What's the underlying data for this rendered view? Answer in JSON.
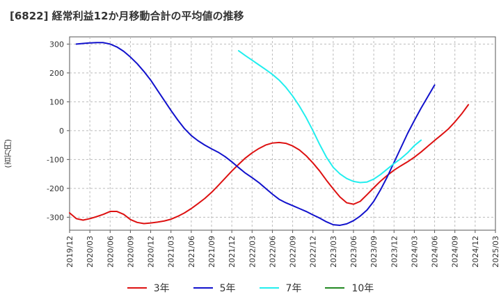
{
  "title": "[6822]  経常利益12か月移動合計の平均値の推移",
  "colors": {
    "grid": "#bbbbbb",
    "axis": "#555555",
    "text": "#333333",
    "plot_bg": "#ffffff"
  },
  "chart_data": {
    "type": "line",
    "title": "[6822]  経常利益12か月移動合計の平均値の推移",
    "xlabel": "",
    "ylabel": "(百万円)",
    "ylim": [
      -345,
      325
    ],
    "yticks": [
      300,
      200,
      100,
      0,
      -100,
      -200,
      -300
    ],
    "x_range": [
      "2019-12",
      "2025-03"
    ],
    "x_ticks": [
      "2019/12",
      "2020/03",
      "2020/06",
      "2020/09",
      "2020/12",
      "2021/03",
      "2021/06",
      "2021/09",
      "2021/12",
      "2022/03",
      "2022/06",
      "2022/09",
      "2022/12",
      "2023/03",
      "2023/06",
      "2023/09",
      "2023/12",
      "2024/03",
      "2024/06",
      "2024/09",
      "2024/12",
      "2025/03"
    ],
    "grid": true,
    "grid_style": "dashed",
    "legend_position": "bottom",
    "series": [
      {
        "name": "3年",
        "color": "#dd1111",
        "points": [
          [
            "2019-12",
            -285
          ],
          [
            "2020-01",
            -305
          ],
          [
            "2020-02",
            -310
          ],
          [
            "2020-03",
            -305
          ],
          [
            "2020-04",
            -298
          ],
          [
            "2020-05",
            -290
          ],
          [
            "2020-06",
            -280
          ],
          [
            "2020-07",
            -280
          ],
          [
            "2020-08",
            -290
          ],
          [
            "2020-09",
            -308
          ],
          [
            "2020-10",
            -318
          ],
          [
            "2020-11",
            -322
          ],
          [
            "2020-12",
            -320
          ],
          [
            "2021-01",
            -317
          ],
          [
            "2021-02",
            -313
          ],
          [
            "2021-03",
            -307
          ],
          [
            "2021-04",
            -297
          ],
          [
            "2021-05",
            -285
          ],
          [
            "2021-06",
            -270
          ],
          [
            "2021-07",
            -253
          ],
          [
            "2021-08",
            -235
          ],
          [
            "2021-09",
            -214
          ],
          [
            "2021-10",
            -190
          ],
          [
            "2021-11",
            -165
          ],
          [
            "2021-12",
            -140
          ],
          [
            "2022-01",
            -117
          ],
          [
            "2022-02",
            -95
          ],
          [
            "2022-03",
            -77
          ],
          [
            "2022-04",
            -62
          ],
          [
            "2022-05",
            -50
          ],
          [
            "2022-06",
            -43
          ],
          [
            "2022-07",
            -41
          ],
          [
            "2022-08",
            -44
          ],
          [
            "2022-09",
            -53
          ],
          [
            "2022-10",
            -67
          ],
          [
            "2022-11",
            -87
          ],
          [
            "2022-12",
            -112
          ],
          [
            "2023-01",
            -140
          ],
          [
            "2023-02",
            -172
          ],
          [
            "2023-03",
            -202
          ],
          [
            "2023-04",
            -230
          ],
          [
            "2023-05",
            -250
          ],
          [
            "2023-06",
            -255
          ],
          [
            "2023-07",
            -245
          ],
          [
            "2023-08",
            -222
          ],
          [
            "2023-09",
            -198
          ],
          [
            "2023-10",
            -175
          ],
          [
            "2023-11",
            -155
          ],
          [
            "2023-12",
            -137
          ],
          [
            "2024-01",
            -122
          ],
          [
            "2024-02",
            -108
          ],
          [
            "2024-03",
            -92
          ],
          [
            "2024-04",
            -74
          ],
          [
            "2024-05",
            -54
          ],
          [
            "2024-06",
            -34
          ],
          [
            "2024-07",
            -15
          ],
          [
            "2024-08",
            5
          ],
          [
            "2024-09",
            30
          ],
          [
            "2024-10",
            58
          ],
          [
            "2024-11",
            90
          ]
        ]
      },
      {
        "name": "5年",
        "color": "#1111cc",
        "points": [
          [
            "2020-01",
            300
          ],
          [
            "2020-02",
            302
          ],
          [
            "2020-03",
            304
          ],
          [
            "2020-04",
            305
          ],
          [
            "2020-05",
            305
          ],
          [
            "2020-06",
            300
          ],
          [
            "2020-07",
            290
          ],
          [
            "2020-08",
            275
          ],
          [
            "2020-09",
            255
          ],
          [
            "2020-10",
            232
          ],
          [
            "2020-11",
            205
          ],
          [
            "2020-12",
            175
          ],
          [
            "2021-01",
            140
          ],
          [
            "2021-02",
            105
          ],
          [
            "2021-03",
            70
          ],
          [
            "2021-04",
            37
          ],
          [
            "2021-05",
            7
          ],
          [
            "2021-06",
            -17
          ],
          [
            "2021-07",
            -35
          ],
          [
            "2021-08",
            -50
          ],
          [
            "2021-09",
            -63
          ],
          [
            "2021-10",
            -75
          ],
          [
            "2021-11",
            -90
          ],
          [
            "2021-12",
            -108
          ],
          [
            "2022-01",
            -128
          ],
          [
            "2022-02",
            -147
          ],
          [
            "2022-03",
            -163
          ],
          [
            "2022-04",
            -180
          ],
          [
            "2022-05",
            -200
          ],
          [
            "2022-06",
            -220
          ],
          [
            "2022-07",
            -238
          ],
          [
            "2022-08",
            -250
          ],
          [
            "2022-09",
            -260
          ],
          [
            "2022-10",
            -270
          ],
          [
            "2022-11",
            -280
          ],
          [
            "2022-12",
            -292
          ],
          [
            "2023-01",
            -303
          ],
          [
            "2023-02",
            -316
          ],
          [
            "2023-03",
            -326
          ],
          [
            "2023-04",
            -328
          ],
          [
            "2023-05",
            -323
          ],
          [
            "2023-06",
            -312
          ],
          [
            "2023-07",
            -296
          ],
          [
            "2023-08",
            -275
          ],
          [
            "2023-09",
            -245
          ],
          [
            "2023-10",
            -205
          ],
          [
            "2023-11",
            -160
          ],
          [
            "2023-12",
            -110
          ],
          [
            "2024-01",
            -60
          ],
          [
            "2024-02",
            -10
          ],
          [
            "2024-03",
            35
          ],
          [
            "2024-04",
            78
          ],
          [
            "2024-05",
            118
          ],
          [
            "2024-06",
            158
          ]
        ]
      },
      {
        "name": "7年",
        "color": "#22eeee",
        "points": [
          [
            "2022-01",
            277
          ],
          [
            "2022-02",
            260
          ],
          [
            "2022-03",
            244
          ],
          [
            "2022-04",
            228
          ],
          [
            "2022-05",
            212
          ],
          [
            "2022-06",
            195
          ],
          [
            "2022-07",
            175
          ],
          [
            "2022-08",
            150
          ],
          [
            "2022-09",
            120
          ],
          [
            "2022-10",
            85
          ],
          [
            "2022-11",
            45
          ],
          [
            "2022-12",
            0
          ],
          [
            "2023-01",
            -48
          ],
          [
            "2023-02",
            -92
          ],
          [
            "2023-03",
            -127
          ],
          [
            "2023-04",
            -150
          ],
          [
            "2023-05",
            -166
          ],
          [
            "2023-06",
            -176
          ],
          [
            "2023-07",
            -180
          ],
          [
            "2023-08",
            -178
          ],
          [
            "2023-09",
            -168
          ],
          [
            "2023-10",
            -152
          ],
          [
            "2023-11",
            -133
          ],
          [
            "2023-12",
            -114
          ],
          [
            "2024-01",
            -97
          ],
          [
            "2024-02",
            -77
          ],
          [
            "2024-03",
            -52
          ],
          [
            "2024-04",
            -33
          ]
        ]
      },
      {
        "name": "10年",
        "color": "#228822",
        "points": []
      }
    ]
  }
}
